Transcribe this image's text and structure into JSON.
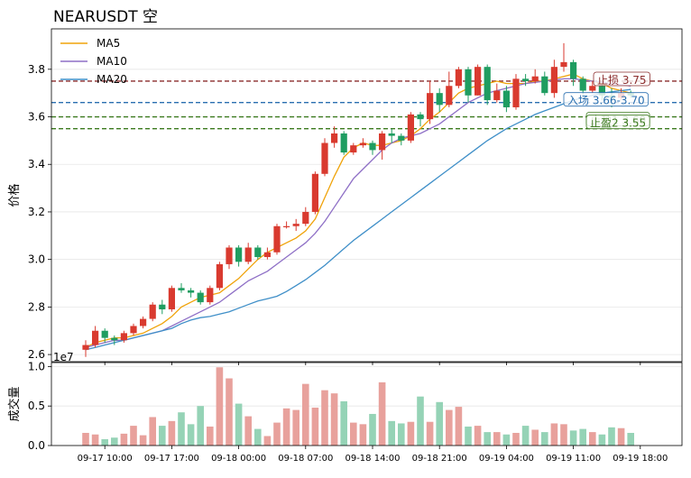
{
  "chart_data": [
    {
      "type": "candlestick",
      "title": "NEARUSDT  空",
      "ylabel": "价格",
      "ylim": [
        2.57,
        3.97
      ],
      "yticks": [
        2.6,
        2.8,
        3.0,
        3.2,
        3.4,
        3.6,
        3.8
      ],
      "ytick_labels": [
        "2.6",
        "2.8",
        "3.0",
        "3.2",
        "3.4",
        "3.6",
        "3.8"
      ],
      "offset_label": "1e7",
      "grid": true,
      "legend": {
        "placement": "top-left",
        "entries": [
          {
            "label": "MA5",
            "color": "#f0a30a"
          },
          {
            "label": "MA10",
            "color": "#8e6fc6"
          },
          {
            "label": "MA20",
            "color": "#3f8fc8"
          }
        ]
      },
      "colors": {
        "up": "#d93a2f",
        "down": "#1f9d61"
      },
      "levels": [
        {
          "label": "止损 3.75",
          "value": 3.75,
          "color": "#8b2c2c"
        },
        {
          "label": "入场 3.66-3.70",
          "value": 3.66,
          "color": "#2a6fb0"
        },
        {
          "label": "止盈1 3.60",
          "value": 3.6,
          "color": "#3b7a1e"
        },
        {
          "label": "止盈2 3.55",
          "value": 3.55,
          "color": "#3b7a1e"
        }
      ],
      "series": [
        {
          "name": "candles",
          "values": [
            [
              2.62,
              2.64,
              2.59,
              2.66
            ],
            [
              2.64,
              2.7,
              2.63,
              2.72
            ],
            [
              2.7,
              2.67,
              2.65,
              2.71
            ],
            [
              2.67,
              2.66,
              2.64,
              2.68
            ],
            [
              2.66,
              2.69,
              2.65,
              2.7
            ],
            [
              2.69,
              2.72,
              2.68,
              2.73
            ],
            [
              2.72,
              2.75,
              2.71,
              2.76
            ],
            [
              2.75,
              2.81,
              2.74,
              2.82
            ],
            [
              2.81,
              2.79,
              2.77,
              2.83
            ],
            [
              2.79,
              2.88,
              2.78,
              2.89
            ],
            [
              2.88,
              2.87,
              2.86,
              2.9
            ],
            [
              2.87,
              2.86,
              2.84,
              2.88
            ],
            [
              2.86,
              2.82,
              2.81,
              2.87
            ],
            [
              2.82,
              2.88,
              2.81,
              2.89
            ],
            [
              2.88,
              2.98,
              2.87,
              2.99
            ],
            [
              2.98,
              3.05,
              2.96,
              3.06
            ],
            [
              3.05,
              2.99,
              2.97,
              3.06
            ],
            [
              2.99,
              3.05,
              2.98,
              3.07
            ],
            [
              3.05,
              3.01,
              3.0,
              3.06
            ],
            [
              3.01,
              3.03,
              3.0,
              3.05
            ],
            [
              3.03,
              3.14,
              3.02,
              3.15
            ],
            [
              3.14,
              3.14,
              3.13,
              3.16
            ],
            [
              3.14,
              3.15,
              3.12,
              3.17
            ],
            [
              3.15,
              3.2,
              3.14,
              3.22
            ],
            [
              3.2,
              3.36,
              3.19,
              3.37
            ],
            [
              3.36,
              3.49,
              3.35,
              3.51
            ],
            [
              3.49,
              3.53,
              3.47,
              3.56
            ],
            [
              3.53,
              3.45,
              3.44,
              3.54
            ],
            [
              3.45,
              3.48,
              3.44,
              3.49
            ],
            [
              3.48,
              3.49,
              3.47,
              3.51
            ],
            [
              3.49,
              3.46,
              3.44,
              3.5
            ],
            [
              3.46,
              3.53,
              3.42,
              3.54
            ],
            [
              3.53,
              3.52,
              3.49,
              3.55
            ],
            [
              3.52,
              3.5,
              3.48,
              3.53
            ],
            [
              3.5,
              3.61,
              3.49,
              3.62
            ],
            [
              3.61,
              3.59,
              3.56,
              3.62
            ],
            [
              3.59,
              3.7,
              3.57,
              3.75
            ],
            [
              3.7,
              3.65,
              3.62,
              3.72
            ],
            [
              3.65,
              3.73,
              3.64,
              3.79
            ],
            [
              3.73,
              3.8,
              3.72,
              3.81
            ],
            [
              3.8,
              3.69,
              3.66,
              3.81
            ],
            [
              3.69,
              3.81,
              3.69,
              3.82
            ],
            [
              3.81,
              3.67,
              3.65,
              3.82
            ],
            [
              3.67,
              3.71,
              3.66,
              3.74
            ],
            [
              3.71,
              3.64,
              3.62,
              3.73
            ],
            [
              3.64,
              3.76,
              3.63,
              3.78
            ],
            [
              3.76,
              3.75,
              3.73,
              3.78
            ],
            [
              3.75,
              3.77,
              3.74,
              3.8
            ],
            [
              3.77,
              3.7,
              3.69,
              3.79
            ],
            [
              3.7,
              3.81,
              3.68,
              3.84
            ],
            [
              3.81,
              3.83,
              3.79,
              3.91
            ],
            [
              3.83,
              3.76,
              3.73,
              3.84
            ],
            [
              3.76,
              3.71,
              3.69,
              3.77
            ],
            [
              3.71,
              3.73,
              3.7,
              3.75
            ],
            [
              3.73,
              3.69,
              3.67,
              3.74
            ],
            [
              3.69,
              3.68,
              3.64,
              3.72
            ],
            [
              3.68,
              3.7,
              3.67,
              3.72
            ],
            [
              3.7,
              3.69,
              3.68,
              3.71
            ]
          ]
        },
        {
          "name": "MA5",
          "values": [
            2.63,
            2.65,
            2.66,
            2.67,
            2.67,
            2.68,
            2.69,
            2.71,
            2.73,
            2.76,
            2.8,
            2.82,
            2.84,
            2.85,
            2.86,
            2.89,
            2.92,
            2.96,
            3.0,
            3.03,
            3.05,
            3.07,
            3.09,
            3.12,
            3.17,
            3.26,
            3.35,
            3.43,
            3.47,
            3.49,
            3.48,
            3.48,
            3.49,
            3.5,
            3.52,
            3.55,
            3.59,
            3.62,
            3.66,
            3.7,
            3.72,
            3.73,
            3.74,
            3.75,
            3.74,
            3.74,
            3.74,
            3.75,
            3.75,
            3.76,
            3.77,
            3.78,
            3.76,
            3.75,
            3.74,
            3.72,
            3.71,
            3.7
          ]
        },
        {
          "name": "MA10",
          "values": [
            2.63,
            2.64,
            2.65,
            2.66,
            2.66,
            2.67,
            2.68,
            2.69,
            2.7,
            2.72,
            2.74,
            2.76,
            2.78,
            2.8,
            2.82,
            2.85,
            2.88,
            2.91,
            2.93,
            2.95,
            2.98,
            3.01,
            3.04,
            3.07,
            3.11,
            3.16,
            3.22,
            3.28,
            3.34,
            3.38,
            3.42,
            3.46,
            3.49,
            3.51,
            3.52,
            3.53,
            3.55,
            3.57,
            3.6,
            3.63,
            3.66,
            3.68,
            3.7,
            3.71,
            3.72,
            3.73,
            3.74,
            3.745,
            3.75,
            3.755,
            3.76,
            3.76,
            3.755,
            3.75,
            3.745,
            3.74,
            3.735,
            3.73
          ]
        },
        {
          "name": "MA20",
          "values": [
            2.62,
            2.63,
            2.64,
            2.65,
            2.66,
            2.67,
            2.68,
            2.69,
            2.7,
            2.71,
            2.73,
            2.745,
            2.755,
            2.76,
            2.77,
            2.78,
            2.795,
            2.81,
            2.825,
            2.835,
            2.845,
            2.865,
            2.89,
            2.915,
            2.945,
            2.975,
            3.01,
            3.045,
            3.08,
            3.11,
            3.14,
            3.17,
            3.2,
            3.23,
            3.26,
            3.29,
            3.32,
            3.35,
            3.38,
            3.41,
            3.44,
            3.47,
            3.5,
            3.525,
            3.55,
            3.57,
            3.59,
            3.61,
            3.625,
            3.64,
            3.655,
            3.67,
            3.68,
            3.69,
            3.7,
            3.705,
            3.71,
            3.715
          ]
        }
      ]
    },
    {
      "type": "bar",
      "ylabel": "成交量",
      "ylim": [
        0,
        1.05
      ],
      "yticks": [
        0.0,
        0.5,
        1.0
      ],
      "ytick_labels": [
        "0.0",
        "0.5",
        "1.0"
      ],
      "xtick_labels": [
        "09-17 10:00",
        "09-17 17:00",
        "09-18 00:00",
        "09-18 07:00",
        "09-18 14:00",
        "09-18 21:00",
        "09-19 04:00",
        "09-19 11:00",
        "09-19 18:00"
      ],
      "xtick_positions": [
        2,
        9,
        16,
        23,
        30,
        37,
        44,
        51,
        58
      ],
      "series": [
        {
          "name": "volume",
          "values": [
            0.16,
            0.14,
            0.08,
            0.1,
            0.15,
            0.25,
            0.13,
            0.36,
            0.25,
            0.31,
            0.42,
            0.27,
            0.5,
            0.24,
            0.99,
            0.85,
            0.53,
            0.37,
            0.21,
            0.12,
            0.29,
            0.47,
            0.45,
            0.78,
            0.48,
            0.7,
            0.66,
            0.56,
            0.29,
            0.27,
            0.4,
            0.8,
            0.31,
            0.28,
            0.3,
            0.62,
            0.3,
            0.55,
            0.45,
            0.49,
            0.24,
            0.25,
            0.17,
            0.17,
            0.14,
            0.16,
            0.25,
            0.2,
            0.17,
            0.28,
            0.27,
            0.19,
            0.21,
            0.17,
            0.14,
            0.23,
            0.22,
            0.16
          ]
        }
      ]
    }
  ]
}
